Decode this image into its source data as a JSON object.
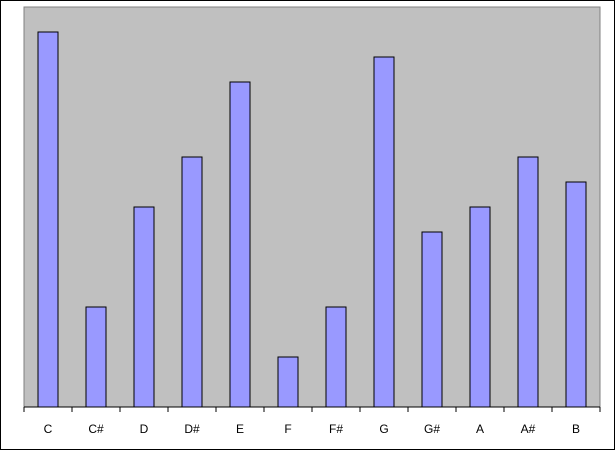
{
  "chart_data": {
    "type": "bar",
    "categories": [
      "C",
      "C#",
      "D",
      "D#",
      "E",
      "F",
      "F#",
      "G",
      "G#",
      "A",
      "A#",
      "B"
    ],
    "values": [
      7.5,
      2.0,
      4.0,
      5.0,
      6.5,
      1.0,
      2.0,
      7.0,
      3.5,
      4.0,
      5.0,
      4.5
    ],
    "ylim": [
      0,
      8
    ],
    "title": "",
    "xlabel": "",
    "ylabel": "",
    "grid": false,
    "legend": "none",
    "colors": {
      "plot_background": "#c0c0c0",
      "bar_fill": "#9999ff",
      "bar_stroke": "#000000",
      "axis": "#000000"
    }
  }
}
